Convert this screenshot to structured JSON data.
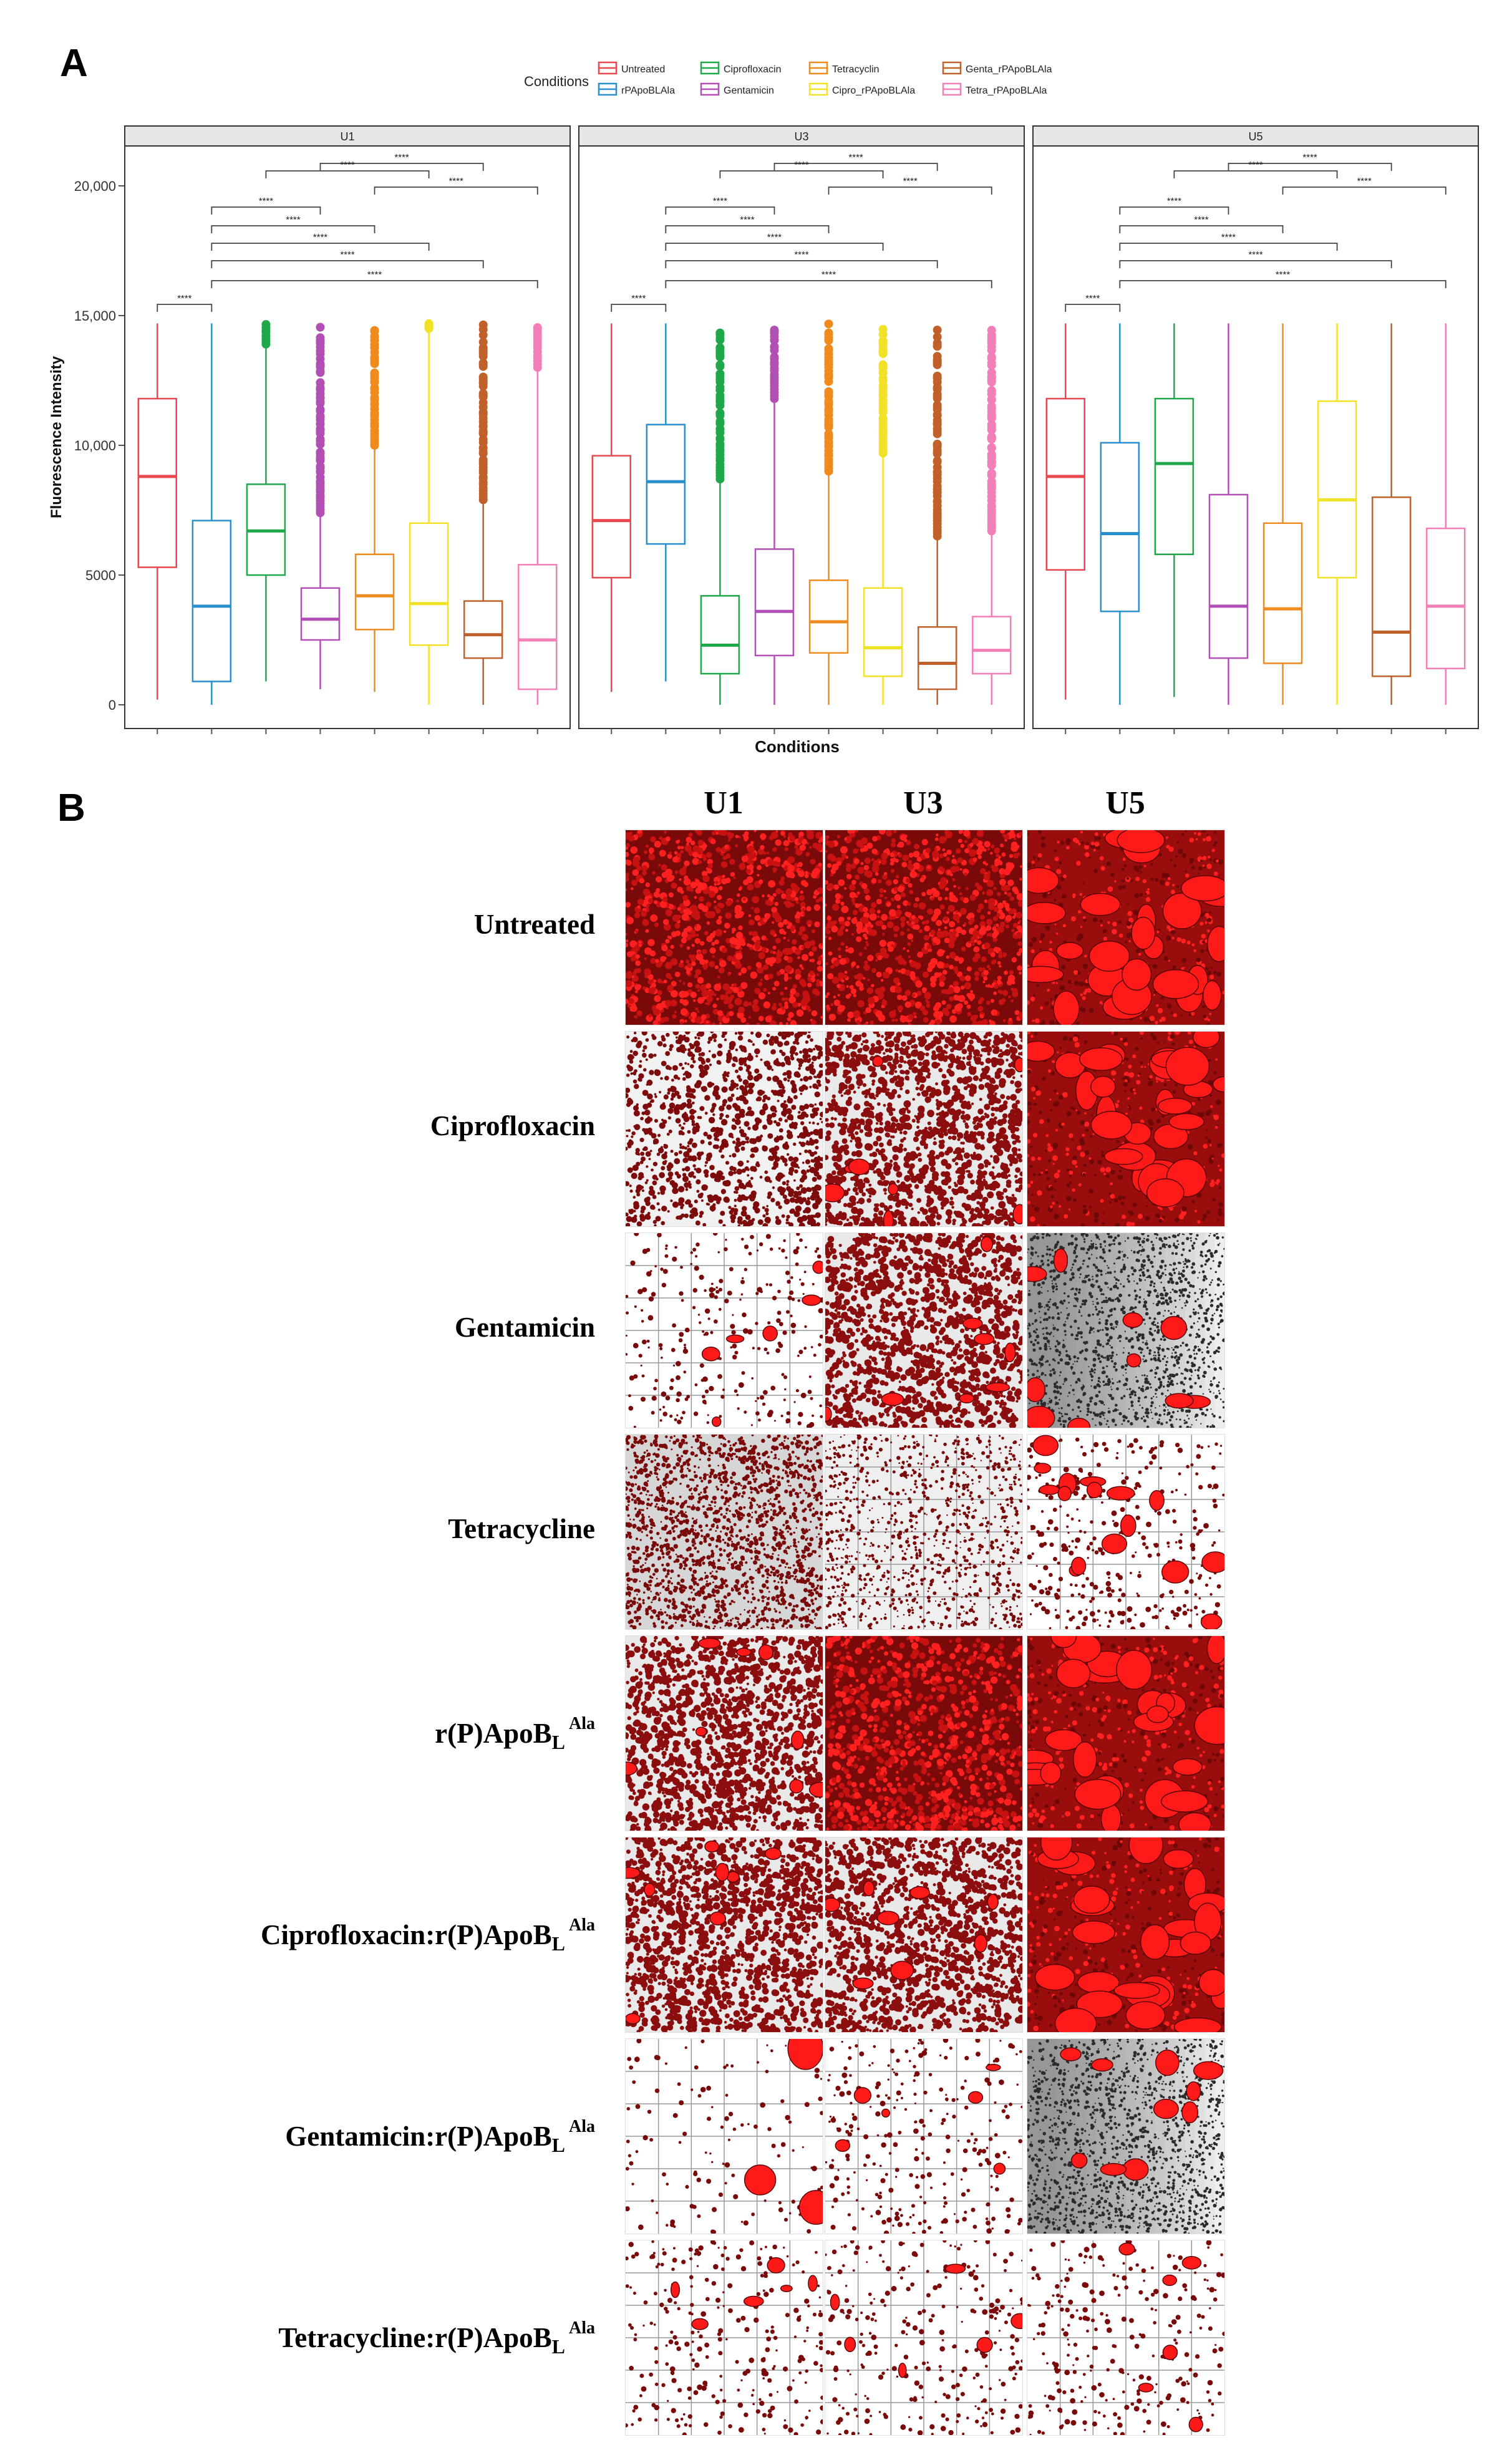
{
  "panel_labels": {
    "a": "A",
    "b": "B"
  },
  "legend": {
    "title": "Conditions",
    "entries": [
      {
        "label": "Untreated",
        "color": "#e8484e"
      },
      {
        "label": "rPApoBLAla",
        "color": "#2a8fcf"
      },
      {
        "label": "Ciprofloxacin",
        "color": "#1fa84a"
      },
      {
        "label": "Gentamicin",
        "color": "#b14fb4"
      },
      {
        "label": "Tetracyclin",
        "color": "#ef8a1e"
      },
      {
        "label": "Cipro_rPApoBLAla",
        "color": "#f2e227"
      },
      {
        "label": "Genta_rPApoBLAla",
        "color": "#c0602b"
      },
      {
        "label": "Tetra_rPApoBLAla",
        "color": "#f27fb8"
      }
    ]
  },
  "chart_data": {
    "type": "box",
    "title": "",
    "xlabel": "Conditions",
    "ylabel": "Fluorescence Intensity",
    "ylim": [
      0,
      21000
    ],
    "yticks": [
      {
        "value": 0,
        "label": "0"
      },
      {
        "value": 5000,
        "label": "5000"
      },
      {
        "value": 10000,
        "label": "10,000"
      },
      {
        "value": 15000,
        "label": "15,000"
      },
      {
        "value": 20000,
        "label": "20,000"
      }
    ],
    "significance_label": "****",
    "facets": [
      {
        "name": "U1",
        "boxes": [
          {
            "min": 200,
            "q1": 5300,
            "median": 8800,
            "q3": 11800,
            "max": 14700,
            "outliers": false
          },
          {
            "min": 0,
            "q1": 900,
            "median": 3800,
            "q3": 7100,
            "max": 14700,
            "outliers": false
          },
          {
            "min": 900,
            "q1": 5000,
            "median": 6700,
            "q3": 8500,
            "max": 13900,
            "outliers": true
          },
          {
            "min": 600,
            "q1": 2500,
            "median": 3300,
            "q3": 4500,
            "max": 7400,
            "outliers": true
          },
          {
            "min": 500,
            "q1": 2900,
            "median": 4200,
            "q3": 5800,
            "max": 10000,
            "outliers": true
          },
          {
            "min": 0,
            "q1": 2300,
            "median": 3900,
            "q3": 7000,
            "max": 14500,
            "outliers": true
          },
          {
            "min": 0,
            "q1": 1800,
            "median": 2700,
            "q3": 4000,
            "max": 7900,
            "outliers": true
          },
          {
            "min": 0,
            "q1": 600,
            "median": 2500,
            "q3": 5400,
            "max": 13000,
            "outliers": true
          }
        ],
        "comparisons": [
          [
            0,
            1
          ],
          [
            1,
            3
          ],
          [
            1,
            4
          ],
          [
            1,
            5
          ],
          [
            1,
            6
          ],
          [
            1,
            7
          ],
          [
            2,
            5
          ],
          [
            3,
            6
          ],
          [
            4,
            7
          ]
        ]
      },
      {
        "name": "U3",
        "boxes": [
          {
            "min": 500,
            "q1": 4900,
            "median": 7100,
            "q3": 9600,
            "max": 14700,
            "outliers": false
          },
          {
            "min": 900,
            "q1": 6200,
            "median": 8600,
            "q3": 10800,
            "max": 14700,
            "outliers": false
          },
          {
            "min": 0,
            "q1": 1200,
            "median": 2300,
            "q3": 4200,
            "max": 8700,
            "outliers": true
          },
          {
            "min": 0,
            "q1": 1900,
            "median": 3600,
            "q3": 6000,
            "max": 11800,
            "outliers": true
          },
          {
            "min": 0,
            "q1": 2000,
            "median": 3200,
            "q3": 4800,
            "max": 9000,
            "outliers": true
          },
          {
            "min": 0,
            "q1": 1100,
            "median": 2200,
            "q3": 4500,
            "max": 9700,
            "outliers": true
          },
          {
            "min": 0,
            "q1": 600,
            "median": 1600,
            "q3": 3000,
            "max": 6500,
            "outliers": true
          },
          {
            "min": 0,
            "q1": 1200,
            "median": 2100,
            "q3": 3400,
            "max": 6700,
            "outliers": true
          }
        ],
        "comparisons": [
          [
            0,
            1
          ],
          [
            1,
            3
          ],
          [
            1,
            4
          ],
          [
            1,
            5
          ],
          [
            1,
            6
          ],
          [
            1,
            7
          ],
          [
            2,
            5
          ],
          [
            3,
            6
          ],
          [
            4,
            7
          ]
        ]
      },
      {
        "name": "U5",
        "boxes": [
          {
            "min": 200,
            "q1": 5200,
            "median": 8800,
            "q3": 11800,
            "max": 14700,
            "outliers": false
          },
          {
            "min": 0,
            "q1": 3600,
            "median": 6600,
            "q3": 10100,
            "max": 14700,
            "outliers": false
          },
          {
            "min": 300,
            "q1": 5800,
            "median": 9300,
            "q3": 11800,
            "max": 14700,
            "outliers": false
          },
          {
            "min": 0,
            "q1": 1800,
            "median": 3800,
            "q3": 8100,
            "max": 14700,
            "outliers": false
          },
          {
            "min": 0,
            "q1": 1600,
            "median": 3700,
            "q3": 7000,
            "max": 14700,
            "outliers": false
          },
          {
            "min": 0,
            "q1": 4900,
            "median": 7900,
            "q3": 11700,
            "max": 14700,
            "outliers": false
          },
          {
            "min": 0,
            "q1": 1100,
            "median": 2800,
            "q3": 8000,
            "max": 14700,
            "outliers": false
          },
          {
            "min": 0,
            "q1": 1400,
            "median": 3800,
            "q3": 6800,
            "max": 14700,
            "outliers": false
          }
        ],
        "comparisons": [
          [
            0,
            1
          ],
          [
            1,
            3
          ],
          [
            1,
            4
          ],
          [
            1,
            5
          ],
          [
            1,
            6
          ],
          [
            1,
            7
          ],
          [
            2,
            5
          ],
          [
            3,
            6
          ],
          [
            4,
            7
          ]
        ]
      }
    ]
  },
  "micrographs": {
    "columns": [
      "U1",
      "U3",
      "U5"
    ],
    "rows": [
      {
        "name": "Untreated",
        "sub": "",
        "sup": ""
      },
      {
        "name": "Ciprofloxacin",
        "sub": "",
        "sup": ""
      },
      {
        "name": "Gentamicin",
        "sub": "",
        "sup": ""
      },
      {
        "name": "Tetracycline",
        "sub": "",
        "sup": ""
      },
      {
        "name": "r(P)ApoB",
        "sub": "L",
        "sup": "Ala"
      },
      {
        "name": "Ciprofloxacin:r(P)ApoB",
        "sub": "L",
        "sup": "Ala"
      },
      {
        "name": "Gentamicin:r(P)ApoB",
        "sub": "L",
        "sup": "Ala"
      },
      {
        "name": "Tetracycline:r(P)ApoB",
        "sub": "L",
        "sup": "Ala"
      }
    ],
    "tile_styles": [
      [
        "dense",
        "dense",
        "patchy"
      ],
      [
        "sparse",
        "medium",
        "patchy"
      ],
      [
        "grid-sparse",
        "medium",
        "gradient"
      ],
      [
        "fine-dense",
        "fine-sparse",
        "grid-patchy"
      ],
      [
        "medium",
        "dense",
        "patchy"
      ],
      [
        "medium",
        "medium",
        "patchy"
      ],
      [
        "grid-blob",
        "grid-sparse",
        "gradient"
      ],
      [
        "grid-sparse",
        "grid-sparse",
        "grid-sparse"
      ]
    ]
  }
}
